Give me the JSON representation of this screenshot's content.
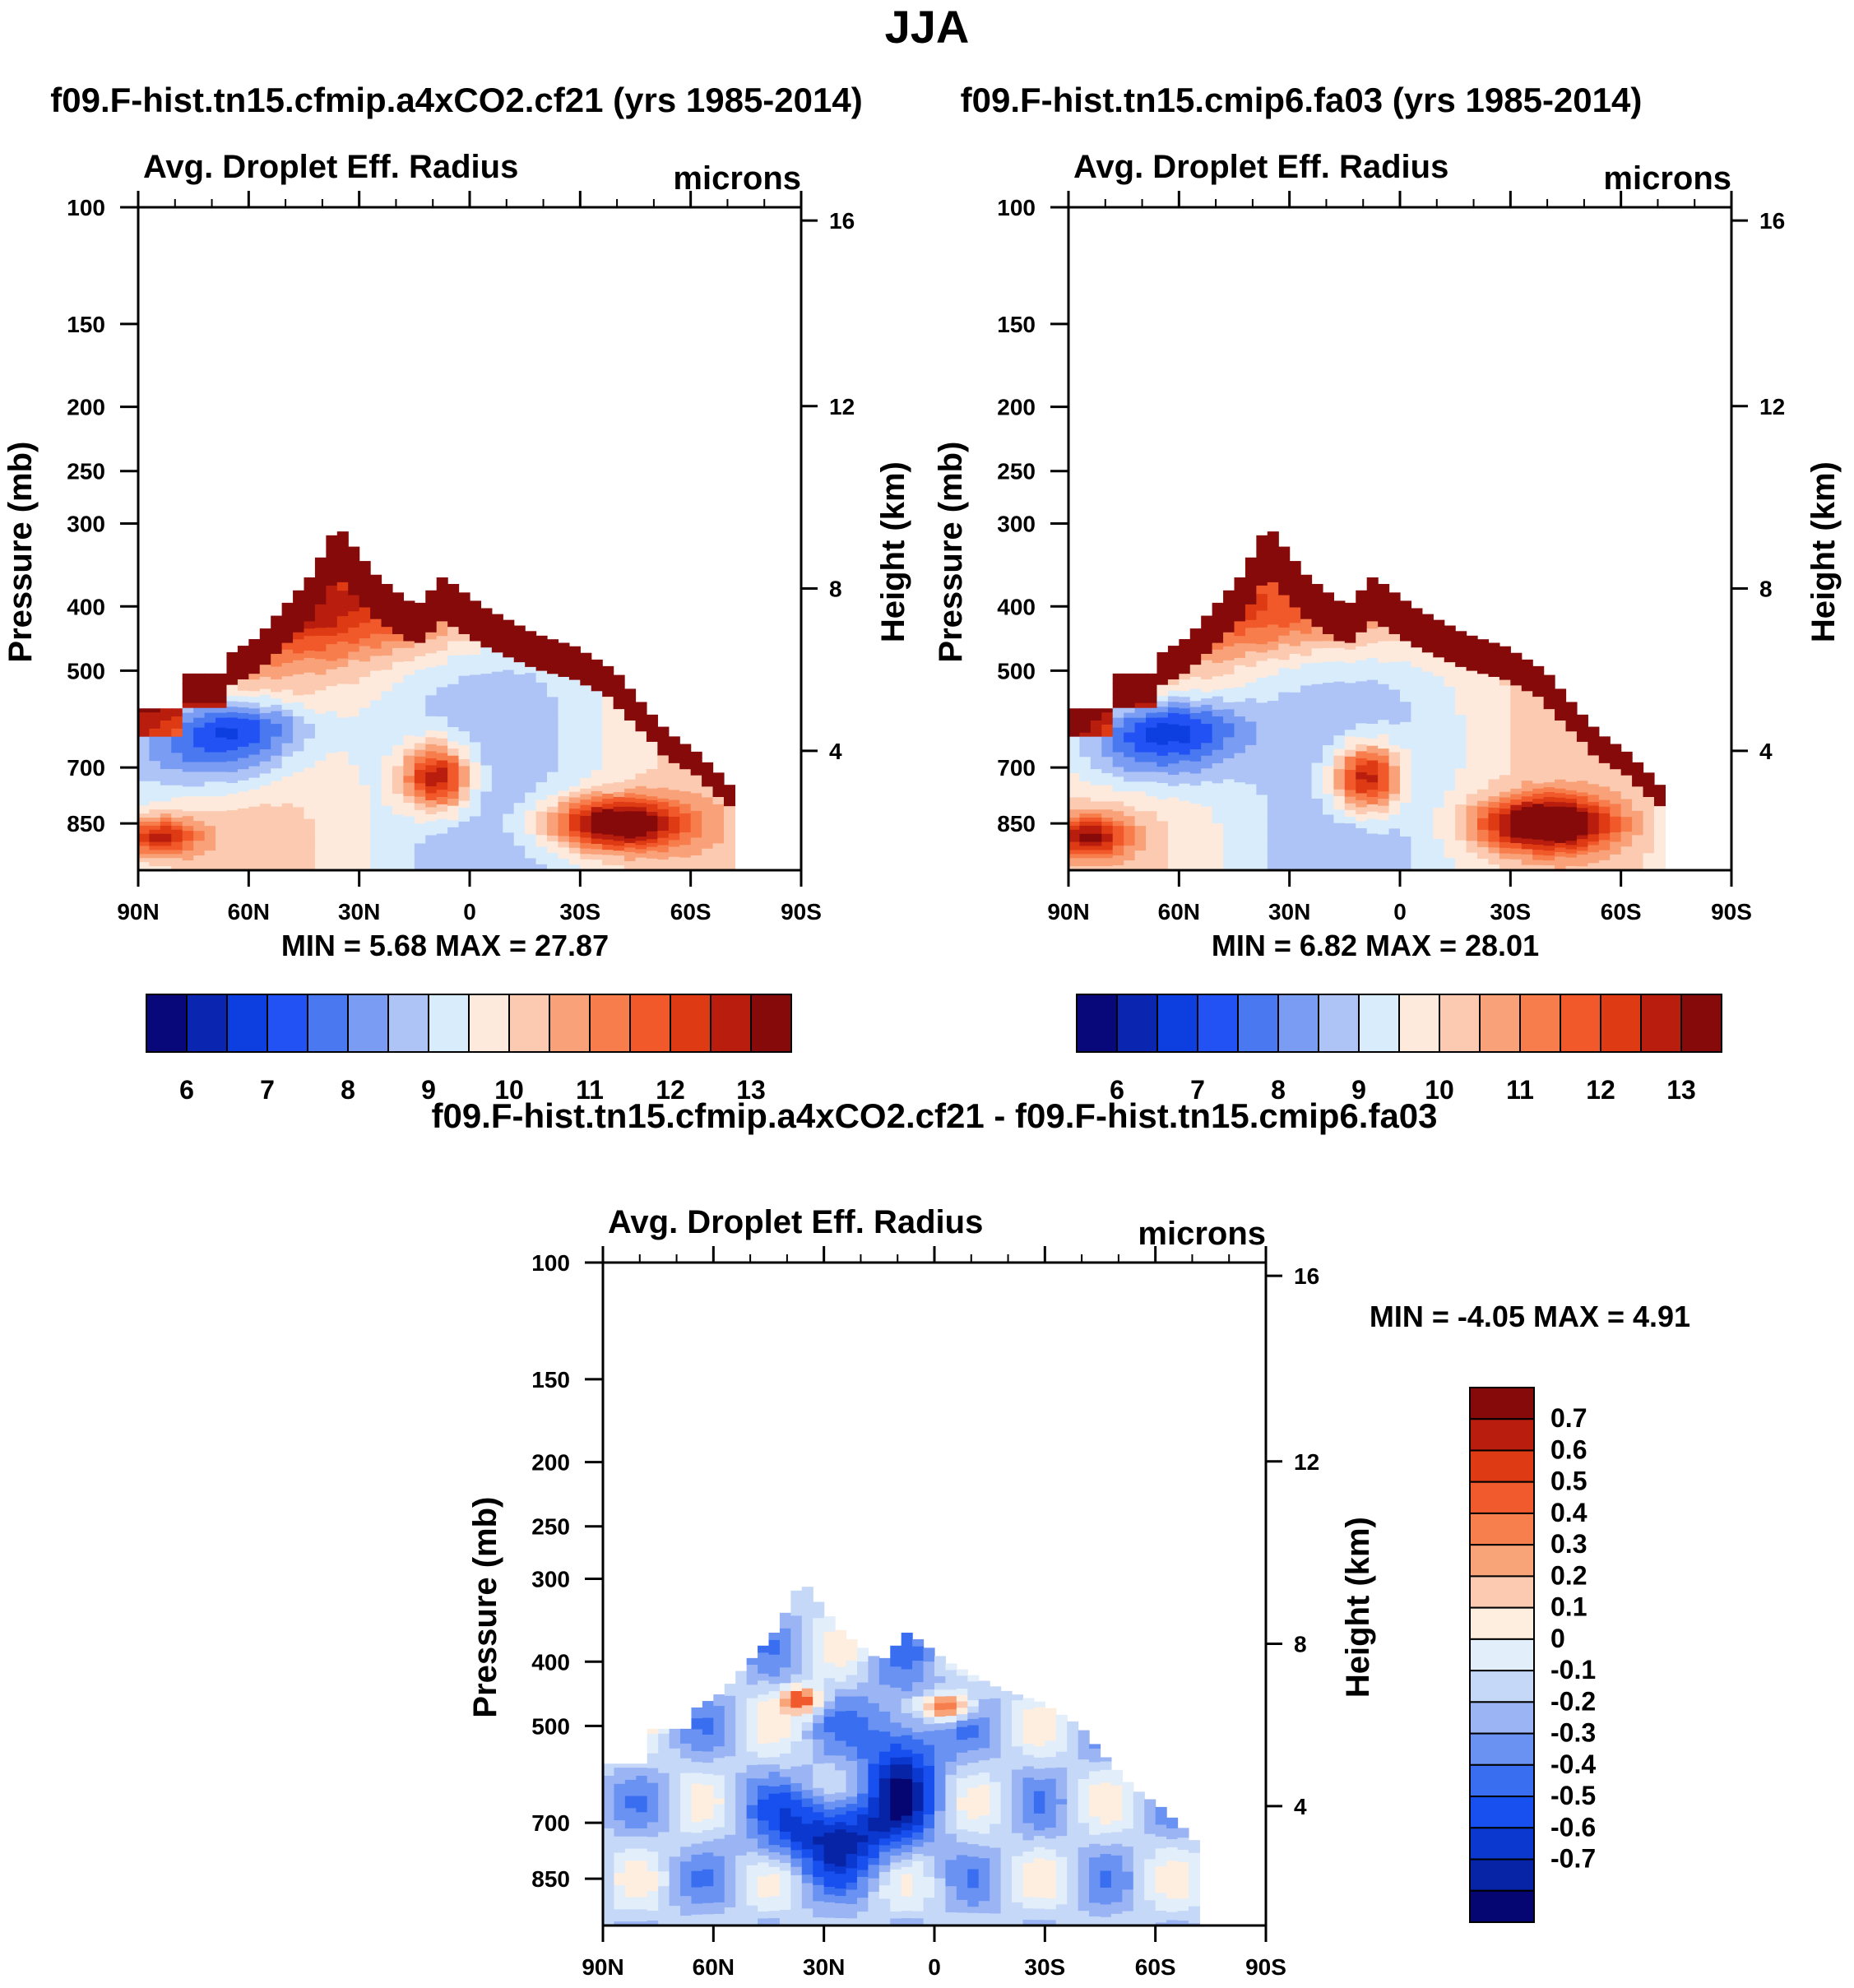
{
  "figure_title": "JJA",
  "colors": {
    "abs_scale": [
      "#08087a",
      "#0a25b0",
      "#0c3ee0",
      "#2252f4",
      "#4a78f0",
      "#7a9cf2",
      "#aec4f6",
      "#d9ecfb",
      "#fdeadc",
      "#fbcab0",
      "#f9a178",
      "#f77d4d",
      "#f1582a",
      "#de3a14",
      "#b81d0d",
      "#870a0a"
    ],
    "diff_scale": [
      "#060673",
      "#0824a6",
      "#0b38cf",
      "#1850ef",
      "#3a6ef0",
      "#6a92f2",
      "#9bb5f4",
      "#c5d8f8",
      "#e3eefb",
      "#fdeee0",
      "#fbcab0",
      "#f9a378",
      "#f77e4d",
      "#f15a2c",
      "#de3a14",
      "#b81d0d",
      "#870a0a"
    ]
  },
  "chart_data": [
    {
      "id": "panel-a4xco2",
      "type": "heatmap",
      "title": "f09.F-hist.tn15.cfmip.a4xCO2.cf21 (yrs 1985-2014)",
      "subtitle_left": "Avg. Droplet Eff. Radius",
      "subtitle_right": "microns",
      "ylabel": "Pressure (mb)",
      "ylabel_right": "Height (km)",
      "yticks": [
        "100",
        "150",
        "200",
        "250",
        "300",
        "400",
        "500",
        "700",
        "850"
      ],
      "yticks_right": [
        "16",
        "12",
        "8",
        "4"
      ],
      "xticks": [
        "90N",
        "60N",
        "30N",
        "0",
        "30S",
        "60S",
        "90S"
      ],
      "ylim": [
        1000,
        100
      ],
      "min": "5.68",
      "max": "27.87",
      "minmax_text": "MIN =   5.68  MAX =  27.87",
      "colorbar_levels": [
        "6",
        "7",
        "8",
        "9",
        "10",
        "11",
        "12",
        "13"
      ],
      "variant": 0
    },
    {
      "id": "panel-cmip6",
      "type": "heatmap",
      "title": "f09.F-hist.tn15.cmip6.fa03 (yrs 1985-2014)",
      "subtitle_left": "Avg. Droplet Eff. Radius",
      "subtitle_right": "microns",
      "ylabel": "Pressure (mb)",
      "ylabel_right": "Height (km)",
      "yticks": [
        "100",
        "150",
        "200",
        "250",
        "300",
        "400",
        "500",
        "700",
        "850"
      ],
      "yticks_right": [
        "16",
        "12",
        "8",
        "4"
      ],
      "xticks": [
        "90N",
        "60N",
        "30N",
        "0",
        "30S",
        "60S",
        "90S"
      ],
      "ylim": [
        1000,
        100
      ],
      "min": "6.82",
      "max": "28.01",
      "minmax_text": "MIN =   6.82  MAX =  28.01",
      "colorbar_levels": [
        "6",
        "7",
        "8",
        "9",
        "10",
        "11",
        "12",
        "13"
      ],
      "variant": 1
    },
    {
      "id": "panel-diff",
      "type": "heatmap",
      "title": "f09.F-hist.tn15.cfmip.a4xCO2.cf21 - f09.F-hist.tn15.cmip6.fa03",
      "subtitle_left": "Avg. Droplet Eff. Radius",
      "subtitle_right": "microns",
      "ylabel": "Pressure (mb)",
      "ylabel_right": "Height (km)",
      "yticks": [
        "100",
        "150",
        "200",
        "250",
        "300",
        "400",
        "500",
        "700",
        "850"
      ],
      "yticks_right": [
        "16",
        "12",
        "8",
        "4"
      ],
      "xticks": [
        "90N",
        "60N",
        "30N",
        "0",
        "30S",
        "60S",
        "90S"
      ],
      "ylim": [
        1000,
        100
      ],
      "min": "-4.05",
      "max": "4.91",
      "minmax_text": "MIN =  -4.05  MAX =    4.91",
      "colorbar_levels": [
        "0.7",
        "0.6",
        "0.5",
        "0.4",
        "0.3",
        "0.2",
        "0.1",
        "0",
        "-0.1",
        "-0.2",
        "-0.3",
        "-0.4",
        "-0.5",
        "-0.6",
        "-0.7"
      ]
    }
  ]
}
